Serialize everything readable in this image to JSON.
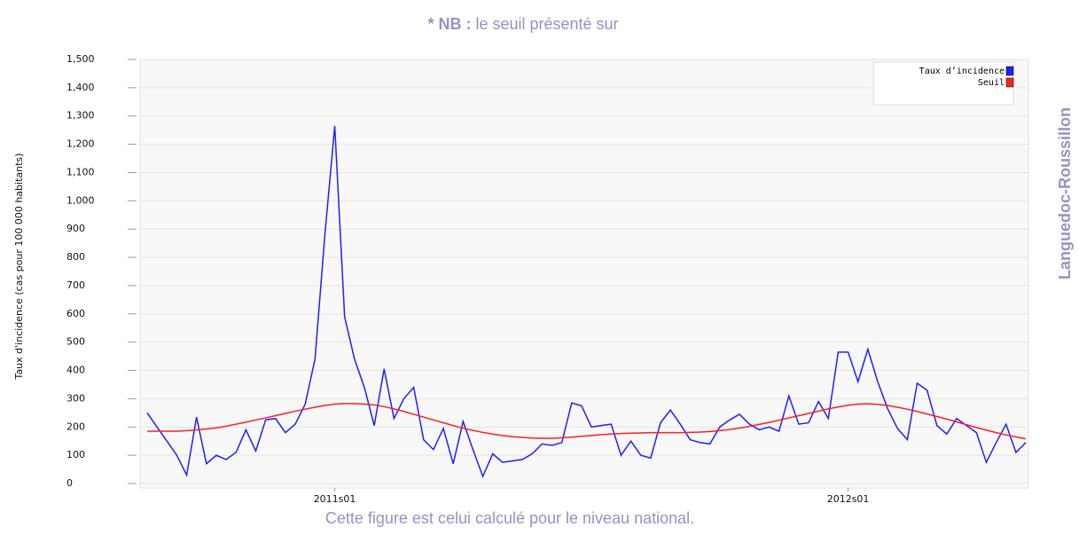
{
  "chart_data": {
    "type": "line",
    "note": {
      "bold": "* NB :",
      "text": "le seuil présenté sur"
    },
    "footer": "Cette figure est celui calculé pour le niveau national.",
    "region": "Languedoc-Roussillon",
    "ylabel": "Taux d'incidence (cas pour 100 000 habitants)",
    "categories": [
      null,
      null,
      null,
      null,
      null,
      null,
      null,
      null,
      null,
      null,
      null,
      null,
      null,
      null,
      null,
      null,
      null,
      null,
      null,
      "2011s01",
      null,
      null,
      null,
      null,
      null,
      null,
      null,
      null,
      null,
      null,
      null,
      null,
      null,
      null,
      null,
      null,
      null,
      null,
      null,
      null,
      null,
      null,
      null,
      null,
      null,
      null,
      null,
      null,
      null,
      null,
      null,
      null,
      null,
      null,
      null,
      null,
      null,
      null,
      null,
      null,
      null,
      null,
      null,
      null,
      null,
      null,
      null,
      null,
      null,
      null,
      null,
      "2012s01",
      null,
      null,
      null,
      null,
      null,
      null,
      null,
      null,
      null,
      null,
      null,
      null,
      null,
      null,
      null,
      null,
      null,
      null
    ],
    "series": [
      {
        "name": "Taux d’incidence",
        "color": "#1f1fff",
        "values": [
          250,
          200,
          150,
          100,
          30,
          235,
          70,
          100,
          85,
          110,
          190,
          115,
          225,
          230,
          180,
          210,
          280,
          440,
          880,
          1265,
          590,
          440,
          340,
          205,
          405,
          230,
          300,
          340,
          155,
          120,
          195,
          70,
          220,
          120,
          25,
          105,
          75,
          80,
          85,
          105,
          140,
          135,
          145,
          285,
          275,
          200,
          205,
          210,
          100,
          150,
          100,
          90,
          215,
          260,
          210,
          155,
          145,
          140,
          200,
          225,
          245,
          210,
          190,
          200,
          185,
          310,
          210,
          215,
          290,
          230,
          465,
          465,
          360,
          475,
          360,
          265,
          195,
          155,
          355,
          330,
          205,
          175,
          230,
          205,
          180,
          75,
          145,
          210,
          110,
          145
        ]
      },
      {
        "name": "Seuil",
        "color": "#ff1f1f",
        "values": [
          185,
          185,
          185,
          185,
          187,
          190,
          193,
          197,
          203,
          210,
          217,
          225,
          232,
          240,
          248,
          256,
          263,
          270,
          276,
          281,
          283,
          283,
          281,
          278,
          272,
          264,
          255,
          245,
          235,
          225,
          215,
          205,
          196,
          188,
          181,
          175,
          170,
          166,
          163,
          161,
          160,
          160,
          162,
          164,
          167,
          170,
          173,
          175,
          177,
          178,
          179,
          180,
          180,
          180,
          180,
          181,
          182,
          184,
          187,
          191,
          196,
          202,
          209,
          216,
          224,
          232,
          240,
          248,
          256,
          264,
          271,
          277,
          281,
          282,
          280,
          276,
          270,
          263,
          255,
          246,
          237,
          228,
          218,
          208,
          198,
          189,
          180,
          172,
          165,
          158
        ]
      }
    ],
    "ylim": [
      0,
      1500
    ],
    "yticks": [
      0,
      100,
      200,
      300,
      400,
      500,
      600,
      700,
      800,
      900,
      {
        "value": 1000,
        "label": "1,000"
      },
      {
        "value": 1100,
        "label": "1,100"
      },
      {
        "value": 1200,
        "label": "1,200"
      },
      {
        "value": 1300,
        "label": "1,300"
      },
      {
        "value": 1400,
        "label": "1,400"
      },
      {
        "value": 1500,
        "label": "1,500"
      }
    ],
    "grid": true,
    "legend": "upper right"
  }
}
